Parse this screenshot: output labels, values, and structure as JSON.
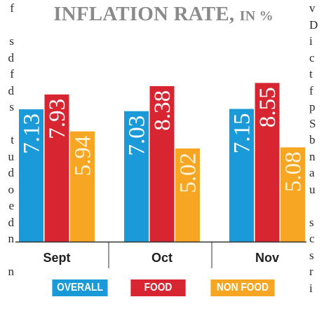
{
  "side_text": {
    "left": [
      "f",
      "",
      "s",
      "d",
      "f",
      "d",
      "s",
      "",
      "t",
      "u",
      "d",
      "o",
      "e",
      "d",
      "n",
      "",
      "n"
    ],
    "right": [
      "v",
      "D",
      "i",
      "c",
      "t",
      "f",
      "p",
      "S",
      "b",
      "n",
      "a",
      "u",
      "",
      "s",
      "c",
      "s",
      "r",
      "i"
    ]
  },
  "colors": {
    "overall": "#1a9ad9",
    "food": "#d72631",
    "non_food": "#f6a623",
    "title": "#8a8a8a",
    "axis": "#333333"
  },
  "chart_data": {
    "type": "bar",
    "title": "INFLATION RATE,",
    "title_unit": "IN %",
    "categories": [
      "Sept",
      "Oct",
      "Nov"
    ],
    "series": [
      {
        "name": "OVERALL",
        "key": "overall",
        "values": [
          7.13,
          7.03,
          7.15
        ]
      },
      {
        "name": "FOOD",
        "key": "food",
        "values": [
          7.93,
          8.38,
          8.55
        ]
      },
      {
        "name": "NON FOOD",
        "key": "non_food",
        "values": [
          5.94,
          5.02,
          5.08
        ]
      }
    ],
    "value_labels": [
      [
        "7.13",
        "7.93",
        "5.94"
      ],
      [
        "7.03",
        "8.38",
        "5.02"
      ],
      [
        "7.15",
        "8.55",
        "5.08"
      ]
    ],
    "ylim": [
      0,
      10
    ],
    "grid": false,
    "legend": "bottom"
  }
}
